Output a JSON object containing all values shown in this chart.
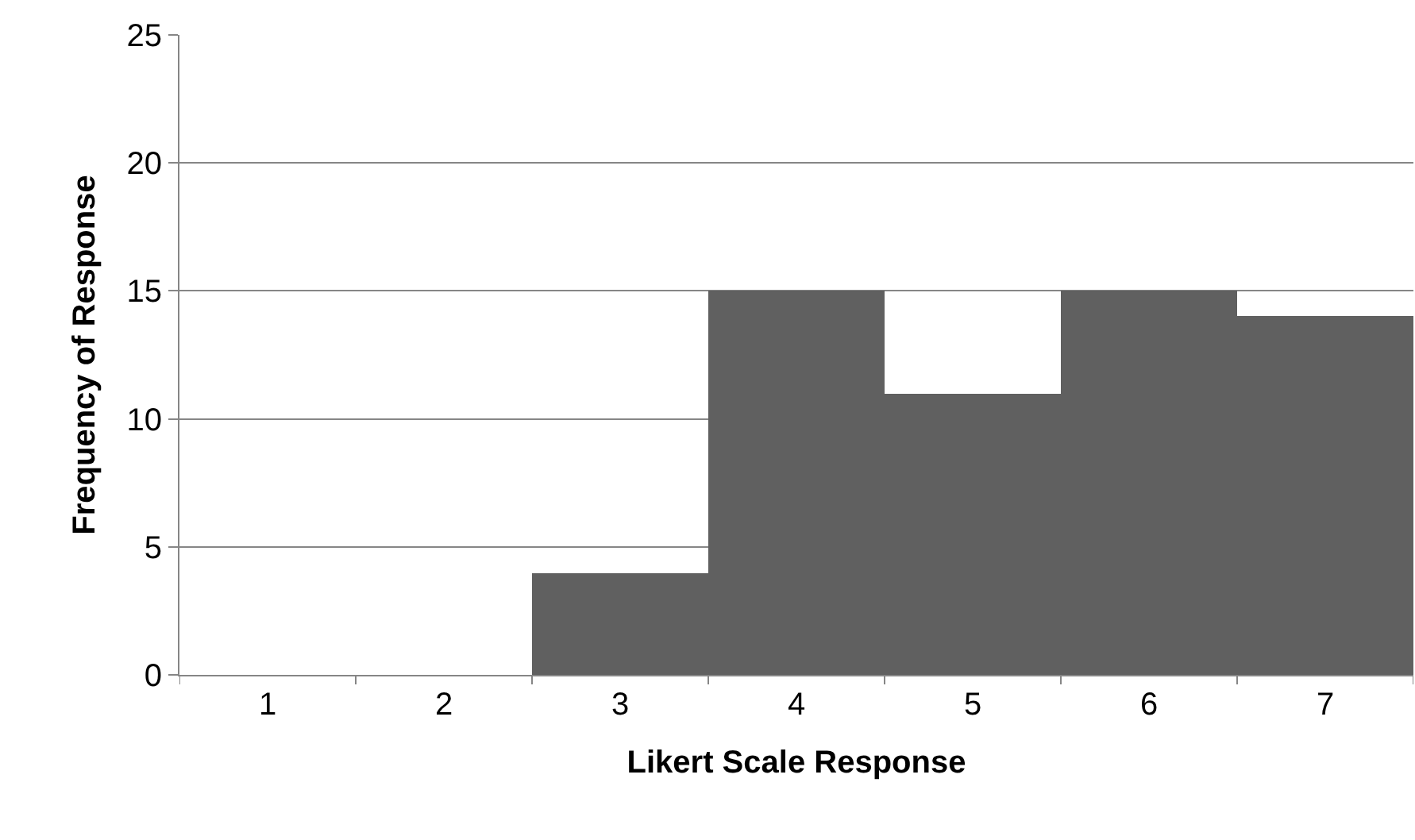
{
  "chart_data": {
    "type": "bar",
    "xlabel": "Likert Scale Response",
    "ylabel": "Frequency of Response",
    "categories": [
      "1",
      "2",
      "3",
      "4",
      "5",
      "6",
      "7"
    ],
    "values": [
      0,
      0,
      4,
      15,
      11,
      15,
      14
    ],
    "color": "#606060",
    "ylim": [
      0,
      25
    ],
    "yticks": [
      0,
      5,
      10,
      15,
      20,
      25
    ],
    "grid": "y"
  }
}
